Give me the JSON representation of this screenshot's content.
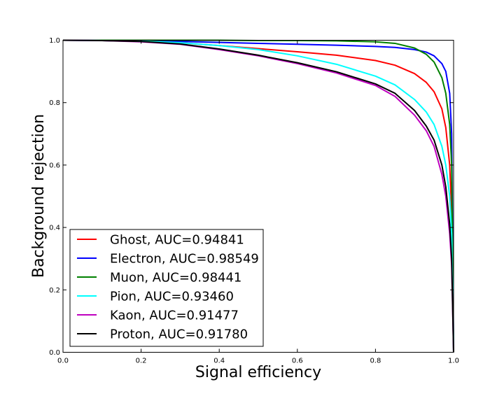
{
  "chart_data": {
    "type": "line",
    "title": "",
    "xlabel": "Signal efficiency",
    "ylabel": "Background rejection",
    "xlim": [
      0.0,
      1.0
    ],
    "ylim": [
      0.0,
      1.0
    ],
    "x_ticks": [
      "0.0",
      "0.2",
      "0.4",
      "0.6",
      "0.8",
      "1.0"
    ],
    "y_ticks": [
      "0.0",
      "0.2",
      "0.4",
      "0.6",
      "0.8",
      "1.0"
    ],
    "grid": false,
    "legend_position": "lower-left",
    "series": [
      {
        "name": "Ghost, AUC=0.94841",
        "color": "#ff0000",
        "x": [
          0.0,
          0.1,
          0.2,
          0.3,
          0.4,
          0.5,
          0.6,
          0.7,
          0.8,
          0.85,
          0.9,
          0.93,
          0.95,
          0.97,
          0.98,
          0.99,
          0.995,
          1.0
        ],
        "y": [
          1.0,
          0.999,
          0.997,
          0.992,
          0.983,
          0.973,
          0.963,
          0.952,
          0.935,
          0.92,
          0.893,
          0.865,
          0.835,
          0.78,
          0.72,
          0.6,
          0.45,
          0.0
        ]
      },
      {
        "name": "Electron, AUC=0.98549",
        "color": "#0000ff",
        "x": [
          0.0,
          0.1,
          0.2,
          0.3,
          0.4,
          0.5,
          0.6,
          0.7,
          0.8,
          0.85,
          0.9,
          0.93,
          0.95,
          0.97,
          0.98,
          0.99,
          0.995,
          1.0
        ],
        "y": [
          1.0,
          0.999,
          0.998,
          0.996,
          0.993,
          0.99,
          0.987,
          0.984,
          0.98,
          0.977,
          0.97,
          0.962,
          0.95,
          0.925,
          0.9,
          0.83,
          0.7,
          0.0
        ]
      },
      {
        "name": "Muon, AUC=0.98441",
        "color": "#008000",
        "x": [
          0.0,
          0.1,
          0.2,
          0.3,
          0.4,
          0.5,
          0.6,
          0.7,
          0.8,
          0.85,
          0.9,
          0.93,
          0.95,
          0.97,
          0.98,
          0.99,
          0.995,
          1.0
        ],
        "y": [
          1.0,
          1.0,
          1.0,
          1.0,
          1.0,
          0.999,
          0.999,
          0.998,
          0.995,
          0.99,
          0.975,
          0.955,
          0.93,
          0.88,
          0.83,
          0.73,
          0.6,
          0.0
        ]
      },
      {
        "name": "Pion, AUC=0.93460",
        "color": "#00ffff",
        "x": [
          0.0,
          0.1,
          0.2,
          0.3,
          0.4,
          0.5,
          0.6,
          0.7,
          0.8,
          0.85,
          0.9,
          0.93,
          0.95,
          0.97,
          0.98,
          0.99,
          0.995,
          1.0
        ],
        "y": [
          1.0,
          0.999,
          0.997,
          0.992,
          0.983,
          0.97,
          0.95,
          0.923,
          0.885,
          0.857,
          0.81,
          0.77,
          0.73,
          0.66,
          0.6,
          0.5,
          0.38,
          0.0
        ]
      },
      {
        "name": "Kaon, AUC=0.91477",
        "color": "#bf00bf",
        "x": [
          0.0,
          0.1,
          0.2,
          0.3,
          0.4,
          0.5,
          0.6,
          0.7,
          0.8,
          0.85,
          0.9,
          0.93,
          0.95,
          0.97,
          0.98,
          0.99,
          0.995,
          1.0
        ],
        "y": [
          1.0,
          0.999,
          0.995,
          0.987,
          0.97,
          0.95,
          0.925,
          0.895,
          0.855,
          0.82,
          0.76,
          0.71,
          0.66,
          0.57,
          0.5,
          0.38,
          0.28,
          0.0
        ]
      },
      {
        "name": "Proton, AUC=0.91780",
        "color": "#000000",
        "x": [
          0.0,
          0.1,
          0.2,
          0.3,
          0.4,
          0.5,
          0.6,
          0.7,
          0.8,
          0.85,
          0.9,
          0.93,
          0.95,
          0.97,
          0.98,
          0.99,
          0.995,
          1.0
        ],
        "y": [
          1.0,
          0.999,
          0.996,
          0.988,
          0.972,
          0.952,
          0.928,
          0.899,
          0.86,
          0.83,
          0.775,
          0.725,
          0.68,
          0.6,
          0.53,
          0.41,
          0.3,
          0.0
        ]
      }
    ]
  }
}
